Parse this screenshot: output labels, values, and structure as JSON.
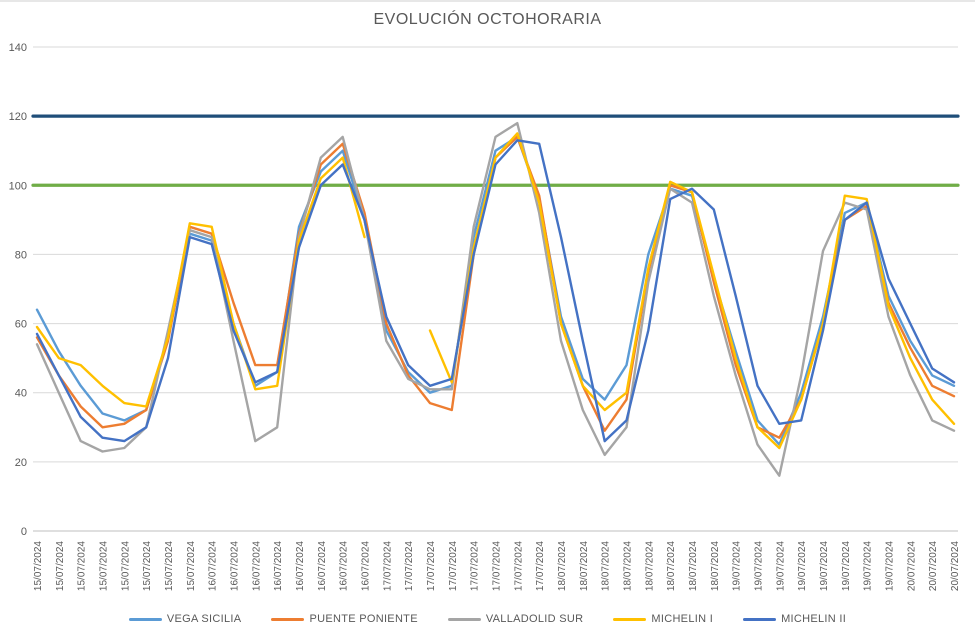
{
  "chart_data": {
    "type": "line",
    "title": "EVOLUCIÓN OCTOHORARIA",
    "xlabel": "",
    "ylabel": "",
    "ylim": [
      0,
      140
    ],
    "y_ticks": [
      0,
      20,
      40,
      60,
      80,
      100,
      120,
      140
    ],
    "grid": true,
    "legend_position": "bottom",
    "x_labels": [
      "15/07/2024",
      "15/07/2024",
      "15/07/2024",
      "15/07/2024",
      "15/07/2024",
      "15/07/2024",
      "15/07/2024",
      "15/07/2024",
      "16/07/2024",
      "16/07/2024",
      "16/07/2024",
      "16/07/2024",
      "16/07/2024",
      "16/07/2024",
      "16/07/2024",
      "16/07/2024",
      "17/07/2024",
      "17/07/2024",
      "17/07/2024",
      "17/07/2024",
      "17/07/2024",
      "17/07/2024",
      "17/07/2024",
      "17/07/2024",
      "18/07/2024",
      "18/07/2024",
      "18/07/2024",
      "18/07/2024",
      "18/07/2024",
      "18/07/2024",
      "18/07/2024",
      "18/07/2024",
      "19/07/2024",
      "19/07/2024",
      "19/07/2024",
      "19/07/2024",
      "19/07/2024",
      "19/07/2024",
      "19/07/2024",
      "19/07/2024",
      "20/07/2024",
      "20/07/2024",
      "20/07/2024"
    ],
    "reference_lines": [
      {
        "name": "limit-120",
        "value": 120,
        "color": "#1F4E79"
      },
      {
        "name": "limit-100",
        "value": 100,
        "color": "#70AD47"
      }
    ],
    "series": [
      {
        "name": "VEGA SICILIA",
        "color": "#5B9BD5",
        "values": [
          64,
          52,
          42,
          34,
          32,
          35,
          56,
          86,
          84,
          60,
          42,
          46,
          88,
          104,
          110,
          90,
          58,
          46,
          40,
          42,
          85,
          110,
          114,
          96,
          62,
          44,
          38,
          48,
          80,
          99,
          97,
          73,
          52,
          32,
          25,
          40,
          62,
          92,
          95,
          68,
          55,
          45,
          42
        ]
      },
      {
        "name": "PUENTE PONIENTE",
        "color": "#ED7D31",
        "values": [
          56,
          45,
          36,
          30,
          31,
          35,
          55,
          88,
          86,
          66,
          48,
          48,
          86,
          106,
          112,
          92,
          60,
          45,
          37,
          35,
          80,
          108,
          114,
          97,
          60,
          42,
          29,
          38,
          75,
          100,
          98,
          72,
          48,
          30,
          27,
          38,
          60,
          90,
          94,
          66,
          53,
          42,
          39
        ]
      },
      {
        "name": "VALLADOLID SUR",
        "color": "#A5A5A5",
        "values": [
          54,
          40,
          26,
          23,
          24,
          30,
          58,
          87,
          85,
          55,
          26,
          30,
          85,
          108,
          114,
          90,
          55,
          44,
          41,
          41,
          88,
          114,
          118,
          92,
          55,
          35,
          22,
          30,
          72,
          99,
          95,
          68,
          45,
          25,
          16,
          45,
          81,
          95,
          93,
          62,
          45,
          32,
          29
        ]
      },
      {
        "name": "MICHELIN I",
        "color": "#FFC000",
        "values": [
          59,
          50,
          48,
          42,
          37,
          36,
          56,
          89,
          88,
          60,
          41,
          42,
          84,
          102,
          108,
          85,
          null,
          null,
          58,
          43,
          82,
          108,
          115,
          95,
          60,
          42,
          35,
          40,
          76,
          101,
          98,
          74,
          50,
          30,
          24,
          38,
          60,
          97,
          96,
          65,
          50,
          38,
          31
        ]
      },
      {
        "name": "MICHELIN II",
        "color": "#4472C4",
        "values": [
          57,
          45,
          33,
          27,
          26,
          30,
          50,
          85,
          83,
          58,
          43,
          46,
          82,
          100,
          106,
          90,
          62,
          48,
          42,
          44,
          80,
          106,
          113,
          112,
          85,
          55,
          26,
          32,
          58,
          96,
          99,
          93,
          68,
          42,
          31,
          32,
          58,
          90,
          95,
          73,
          60,
          47,
          43
        ]
      }
    ],
    "axis_text_color": "#595959",
    "gridline_color": "#D9D9D9"
  }
}
